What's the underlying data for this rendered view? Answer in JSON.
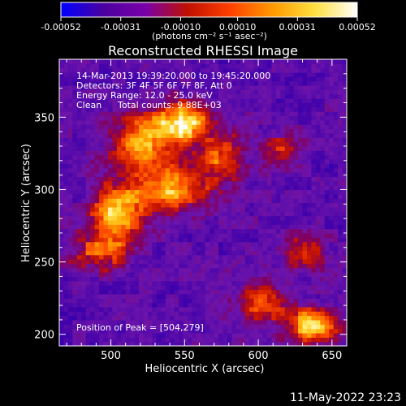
{
  "chart_data": {
    "type": "heatmap",
    "title": "Reconstructed RHESSI Image",
    "xlabel": "Heliocentric X (arcsec)",
    "ylabel": "Heliocentric Y (arcsec)",
    "xlim": [
      465,
      660
    ],
    "ylim": [
      192,
      390
    ],
    "xticks": [
      500,
      550,
      600,
      650
    ],
    "yticks": [
      200,
      250,
      300,
      350
    ],
    "colorbar": {
      "min": -0.00052,
      "max": 0.00052,
      "ticks": [
        -0.00052,
        -0.00031,
        -0.0001,
        0.0001,
        0.00031,
        0.00052
      ],
      "tick_labels": [
        "-0.00052",
        "-0.00031",
        "-0.00010",
        "0.00010",
        "0.00031",
        "0.00052"
      ],
      "unit_label": "(photons cm⁻² s⁻¹ asec⁻²)",
      "colors": [
        "#0000ff",
        "#4b00a0",
        "#7a00a8",
        "#c01000",
        "#ff4000",
        "#ff9a00",
        "#ffe040",
        "#ffffff"
      ]
    },
    "annotations": {
      "time_range": "14-Mar-2013 19:39:20.000 to 19:45:20.000",
      "detectors": "Detectors: 3F 4F 5F 6F 7F 8F, Att 0",
      "energy_range": "Energy Range: 12.0 - 25.0 keV",
      "method": "Clean",
      "total_counts": "Total counts: 9.88E+03",
      "peak": "Position of Peak = [504,279]"
    },
    "peak_position": [
      504,
      279
    ],
    "sources": [
      {
        "x": 547,
        "y": 345,
        "amp": 1.0,
        "sx": 14,
        "sy": 10
      },
      {
        "x": 503,
        "y": 281,
        "amp": 1.0,
        "sx": 12,
        "sy": 14
      },
      {
        "x": 540,
        "y": 300,
        "amp": 0.85,
        "sx": 18,
        "sy": 12
      },
      {
        "x": 520,
        "y": 330,
        "amp": 0.8,
        "sx": 16,
        "sy": 14
      },
      {
        "x": 575,
        "y": 320,
        "amp": 0.65,
        "sx": 12,
        "sy": 12
      },
      {
        "x": 490,
        "y": 255,
        "amp": 0.6,
        "sx": 14,
        "sy": 10
      },
      {
        "x": 635,
        "y": 205,
        "amp": 1.0,
        "sx": 12,
        "sy": 9
      },
      {
        "x": 600,
        "y": 222,
        "amp": 0.7,
        "sx": 12,
        "sy": 10
      },
      {
        "x": 615,
        "y": 325,
        "amp": 0.5,
        "sx": 8,
        "sy": 10
      },
      {
        "x": 630,
        "y": 255,
        "amp": 0.45,
        "sx": 10,
        "sy": 10
      }
    ]
  },
  "footer": {
    "date": "11-May-2022 23:23"
  }
}
